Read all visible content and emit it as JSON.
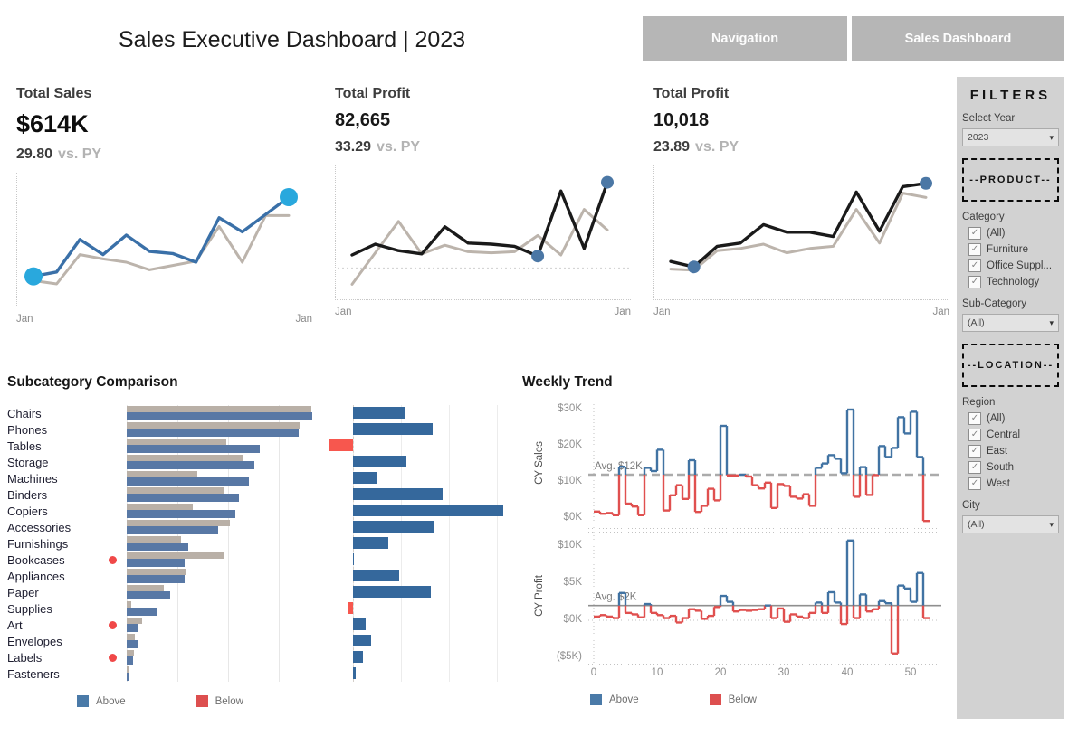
{
  "header": {
    "title": "Sales Executive Dashboard | 2023",
    "buttons": [
      "Navigation",
      "Sales Dashboard"
    ]
  },
  "kpis": [
    {
      "label": "Total Sales",
      "value": "$614K",
      "delta": "29.80",
      "delta_suffix": "vs. PY",
      "x_start": "Jan",
      "x_end": "Jan"
    },
    {
      "label": "Total Profit",
      "value": "82,665",
      "delta": "33.29",
      "delta_suffix": "vs. PY",
      "x_start": "Jan",
      "x_end": "Jan"
    },
    {
      "label": "Total Profit",
      "value": "10,018",
      "delta": "23.89",
      "delta_suffix": "vs. PY",
      "x_start": "Jan",
      "x_end": "Jan"
    }
  ],
  "subcategory": {
    "title": "Subcategory Comparison",
    "legend": [
      {
        "label": "Above",
        "color": "#4a7aa8"
      },
      {
        "label": "Below",
        "color": "#dd4f4f"
      }
    ]
  },
  "weekly": {
    "title": "Weekly Trend",
    "legend": [
      {
        "label": "Above",
        "color": "#4a7aa8"
      },
      {
        "label": "Below",
        "color": "#dd4f4f"
      }
    ]
  },
  "filters": {
    "heading": "FILTERS",
    "select_year_label": "Select Year",
    "select_year_value": "2023",
    "product_label": "--PRODUCT--",
    "category_label": "Category",
    "category_options": [
      "(All)",
      "Furniture",
      "Office Suppl...",
      "Technology"
    ],
    "subcategory_label": "Sub-Category",
    "subcategory_value": "(All)",
    "location_label": "--LOCATION--",
    "region_label": "Region",
    "region_options": [
      "(All)",
      "Central",
      "East",
      "South",
      "West"
    ],
    "city_label": "City",
    "city_value": "(All)"
  },
  "chart_data": [
    {
      "type": "line",
      "name": "total-sales-sparkline",
      "scale": "relative-0-1",
      "x_ticks": [
        "Jan",
        "Jan"
      ],
      "zero_line": null,
      "series": [
        {
          "name": "CY",
          "color": "#3a70a8",
          "values": [
            0.17,
            0.21,
            0.51,
            0.37,
            0.55,
            0.4,
            0.38,
            0.3,
            0.71,
            0.58,
            0.74,
            0.9
          ]
        },
        {
          "name": "PY",
          "color": "#bcb4ac",
          "values": [
            0.13,
            0.1,
            0.37,
            0.33,
            0.3,
            0.23,
            0.27,
            0.31,
            0.63,
            0.3,
            0.73,
            0.73
          ]
        }
      ],
      "endpoint_dots": {
        "indices": [
          0,
          11
        ],
        "color": "#29a8dd",
        "radius": 10
      }
    },
    {
      "type": "line",
      "name": "total-profit-sparkline",
      "scale": "relative-0-1",
      "x_ticks": [
        "Jan",
        "Jan"
      ],
      "zero_line": 0.18,
      "series": [
        {
          "name": "CY",
          "color": "#1a1a1a",
          "values": [
            0.3,
            0.4,
            0.34,
            0.31,
            0.56,
            0.41,
            0.4,
            0.38,
            0.29,
            0.89,
            0.36,
            0.97
          ]
        },
        {
          "name": "PY",
          "color": "#bcb4ac",
          "values": [
            0.03,
            0.32,
            0.61,
            0.31,
            0.39,
            0.33,
            0.32,
            0.33,
            0.48,
            0.3,
            0.72,
            0.53
          ]
        }
      ],
      "endpoint_dots": {
        "indices": [
          8,
          11
        ],
        "color": "#4b77a5",
        "radius": 7
      }
    },
    {
      "type": "line",
      "name": "total-profit-ratio-sparkline",
      "scale": "relative-0-1",
      "x_ticks": [
        "Jan",
        "Jan"
      ],
      "zero_line": null,
      "series": [
        {
          "name": "CY",
          "color": "#1a1a1a",
          "values": [
            0.24,
            0.19,
            0.38,
            0.41,
            0.58,
            0.51,
            0.51,
            0.47,
            0.88,
            0.52,
            0.93,
            0.96
          ]
        },
        {
          "name": "PY",
          "color": "#bcb4ac",
          "values": [
            0.17,
            0.16,
            0.34,
            0.36,
            0.4,
            0.32,
            0.36,
            0.38,
            0.72,
            0.41,
            0.87,
            0.83
          ]
        }
      ],
      "endpoint_dots": {
        "indices": [
          1,
          11
        ],
        "color": "#4b77a5",
        "radius": 7
      }
    },
    {
      "type": "bar",
      "name": "subcategory-comparison",
      "scale": "relative-0-1",
      "categories": [
        "Chairs",
        "Phones",
        "Tables",
        "Storage",
        "Machines",
        "Binders",
        "Copiers",
        "Accessories",
        "Furnishings",
        "Bookcases",
        "Appliances",
        "Paper",
        "Supplies",
        "Art",
        "Envelopes",
        "Labels",
        "Fasteners"
      ],
      "series": [
        {
          "name": "CY Sales",
          "color": "#5878a5",
          "values": [
            0.99,
            0.92,
            0.71,
            0.68,
            0.65,
            0.6,
            0.58,
            0.49,
            0.33,
            0.31,
            0.31,
            0.23,
            0.16,
            0.06,
            0.065,
            0.034,
            0.012
          ]
        },
        {
          "name": "PY Sales",
          "color": "#b9b0a7",
          "values": [
            0.985,
            0.925,
            0.53,
            0.62,
            0.375,
            0.515,
            0.355,
            0.55,
            0.29,
            0.52,
            0.317,
            0.2,
            0.022,
            0.08,
            0.045,
            0.04,
            0.01
          ]
        }
      ],
      "delta_bars": {
        "name": "vs PY",
        "above_color": "#35689c",
        "below_color": "#f7574e",
        "values": [
          0.29,
          0.45,
          -0.14,
          0.3,
          0.14,
          0.51,
          0.85,
          0.46,
          0.2,
          0.005,
          0.26,
          0.44,
          -0.03,
          0.07,
          0.1,
          0.055,
          0.014
        ]
      },
      "below_flags": [
        "Bookcases",
        "Art",
        "Labels"
      ]
    },
    {
      "type": "step-line",
      "name": "weekly-cy-sales",
      "ylabel": "CY Sales",
      "units": "$K",
      "ylim": [
        -3,
        32.5
      ],
      "yticks": [
        [
          "$30K",
          30
        ],
        [
          "$20K",
          20
        ],
        [
          "$10K",
          10
        ],
        [
          "$0K",
          0
        ]
      ],
      "avg": 12,
      "avg_label": "Avg. $12K",
      "avg_line_style": "dashed",
      "above_color": "#4173a3",
      "below_color": "#e0504f",
      "values": [
        1.8,
        1.2,
        1.4,
        0.8,
        14.2,
        4.0,
        3.2,
        0.8,
        13.9,
        13.0,
        18.9,
        2.1,
        6.3,
        9.1,
        5.3,
        16.0,
        1.7,
        3.4,
        8.1,
        4.9,
        25.5,
        11.8,
        11.8,
        12.0,
        11.5,
        9.1,
        8.2,
        9.8,
        2.8,
        9.4,
        8.9,
        5.9,
        5.4,
        6.6,
        3.4,
        13.9,
        15.1,
        17.4,
        16.4,
        12.4,
        30.0,
        5.9,
        14.1,
        6.4,
        11.9,
        19.9,
        16.9,
        19.4,
        27.9,
        23.4,
        29.4,
        16.9,
        -0.8
      ]
    },
    {
      "type": "step-line",
      "name": "weekly-cy-profit",
      "ylabel": "CY Profit",
      "units": "$K",
      "ylim": [
        -6,
        12
      ],
      "yticks": [
        [
          "$10K",
          10
        ],
        [
          "$5K",
          5
        ],
        [
          "$0K",
          0
        ],
        [
          "($5K)",
          -5
        ]
      ],
      "avg": 2,
      "avg_label": "Avg. $2K",
      "avg_line_style": "solid",
      "above_color": "#4173a3",
      "below_color": "#e0504f",
      "xticks": [
        0,
        10,
        20,
        30,
        40,
        50
      ],
      "values": [
        0.5,
        0.7,
        0.5,
        0.3,
        3.7,
        1.0,
        0.8,
        0.4,
        2.2,
        1.0,
        0.7,
        0.3,
        0.6,
        -0.3,
        0.3,
        1.5,
        1.3,
        0.2,
        0.6,
        1.8,
        3.3,
        2.5,
        1.2,
        1.4,
        1.3,
        1.4,
        1.5,
        2.0,
        0.3,
        1.6,
        -0.2,
        0.8,
        0.5,
        0.3,
        1.0,
        2.4,
        1.0,
        3.8,
        2.4,
        -0.5,
        10.8,
        0.3,
        3.5,
        1.2,
        1.5,
        2.6,
        2.3,
        -4.5,
        4.7,
        4.3,
        2.5,
        6.4,
        0.3
      ]
    }
  ]
}
